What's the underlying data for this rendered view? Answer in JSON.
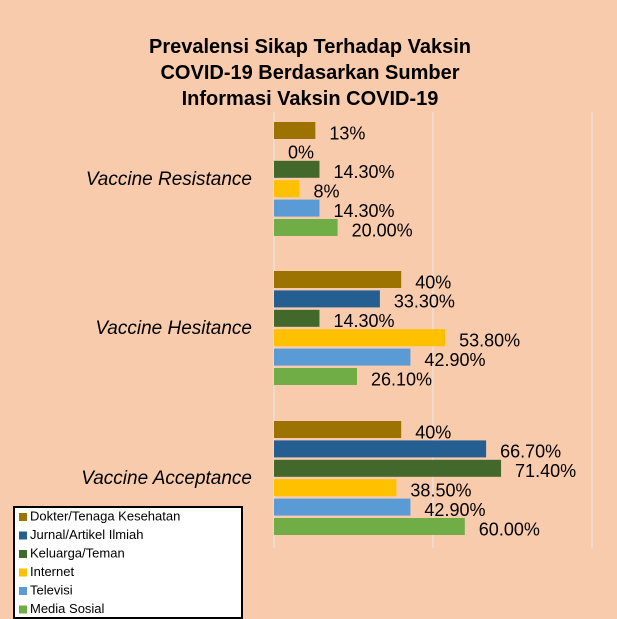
{
  "chart_data": {
    "type": "bar",
    "orientation": "horizontal",
    "title": "Prevalensi Sikap Terhadap Vaksin COVID-19 Berdasarkan Sumber Informasi Vaksin COVID-19",
    "categories": [
      "Vaccine Resistance",
      "Vaccine Hesitance",
      "Vaccine Acceptance"
    ],
    "series": [
      {
        "name": "Dokter/Tenaga Kesehatan",
        "color": "#9c7300",
        "values": [
          13,
          40,
          40
        ],
        "value_labels": [
          "13%",
          "40%",
          "40%"
        ]
      },
      {
        "name": "Jurnal/Artikel Ilmiah",
        "color": "#255e91",
        "values": [
          0,
          33.3,
          66.7
        ],
        "value_labels": [
          "0%",
          "33.30%",
          "66.70%"
        ]
      },
      {
        "name": "Keluarga/Teman",
        "color": "#43682b",
        "values": [
          14.3,
          14.3,
          71.4
        ],
        "value_labels": [
          "14.30%",
          "14.30%",
          "71.40%"
        ]
      },
      {
        "name": "Internet",
        "color": "#ffc000",
        "values": [
          8,
          53.8,
          38.5
        ],
        "value_labels": [
          "8%",
          "53.80%",
          "38.50%"
        ]
      },
      {
        "name": "Televisi",
        "color": "#5b9bd5",
        "values": [
          14.3,
          42.9,
          42.9
        ],
        "value_labels": [
          "14.30%",
          "42.90%",
          "42.90%"
        ]
      },
      {
        "name": "Media Sosial",
        "color": "#70ad47",
        "values": [
          20,
          26.1,
          60
        ],
        "value_labels": [
          "20.00%",
          "26.10%",
          "60.00%"
        ]
      }
    ],
    "xlim": [
      0,
      100
    ],
    "xticks": [
      0,
      50,
      100
    ],
    "grid": true,
    "legend": "bottom-left"
  }
}
